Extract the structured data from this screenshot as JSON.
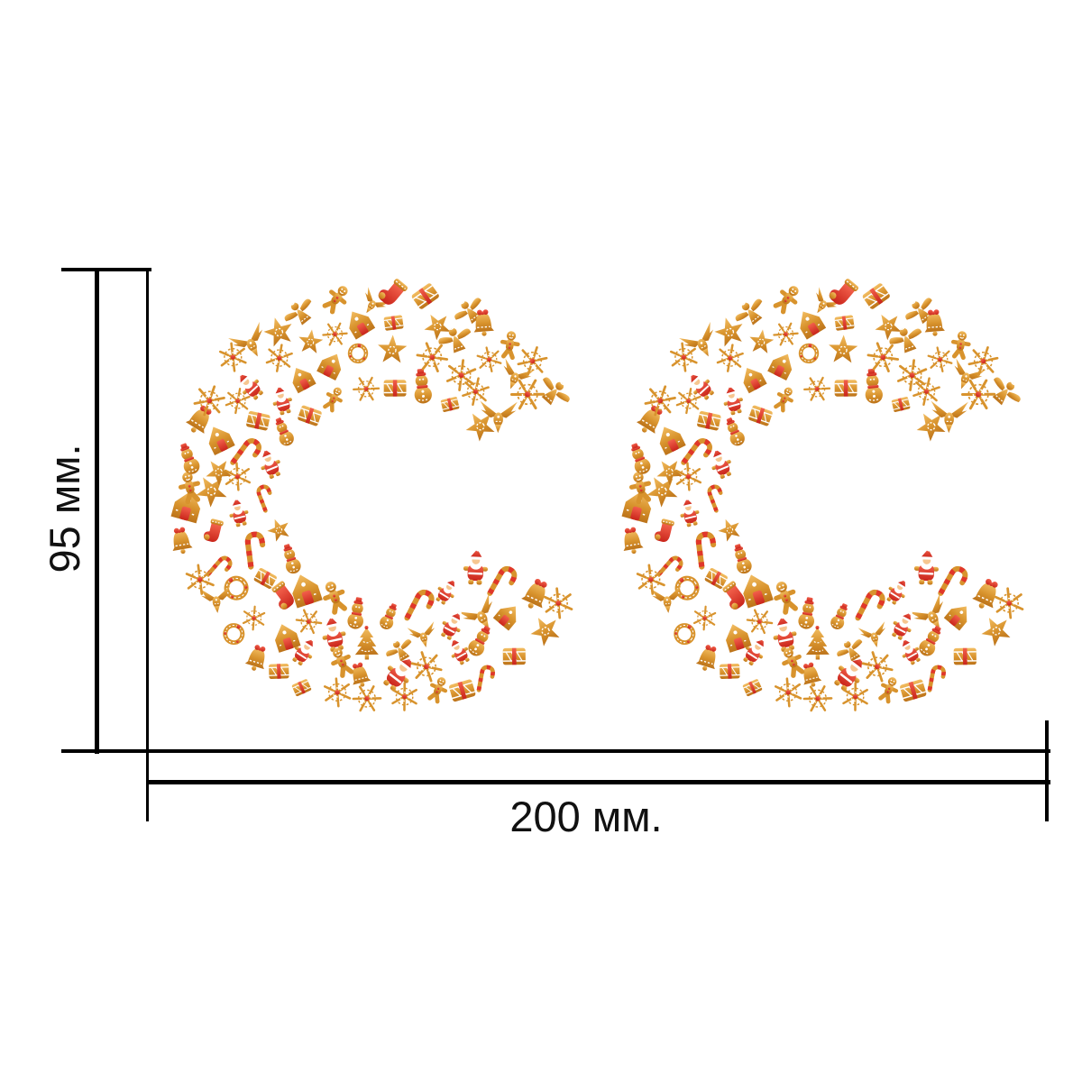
{
  "page": {
    "background": "#ffffff"
  },
  "diagram": {
    "height_dimension_label": "95 мм.",
    "width_dimension_label": "200 мм.",
    "line_color": "#000000",
    "text_color": "#111111"
  },
  "product": {
    "description": "letters-CC-christmas-gingerbread-mosaic",
    "letters": [
      {
        "glyph": "C"
      },
      {
        "glyph": "C"
      }
    ],
    "pattern_seed": 1987,
    "palette": {
      "gold_light": "#f2bd62",
      "gold": "#d8932d",
      "gold_dark": "#bc731a",
      "red_light": "#f2604b",
      "red": "#e0372a",
      "red_dark": "#c9251b",
      "skin": "#f6c690",
      "icing": "#ffffff"
    },
    "icons": [
      {
        "name": "gingerbread-house",
        "weight": 8
      },
      {
        "name": "snowflake",
        "weight": 15
      },
      {
        "name": "star",
        "weight": 7
      },
      {
        "name": "santa",
        "weight": 8
      },
      {
        "name": "bell",
        "weight": 7
      },
      {
        "name": "snowman",
        "weight": 7
      },
      {
        "name": "angel",
        "weight": 6
      },
      {
        "name": "dove",
        "weight": 10
      },
      {
        "name": "gift-box",
        "weight": 8
      },
      {
        "name": "candy-cane",
        "weight": 8
      },
      {
        "name": "gingerbread-man",
        "weight": 6
      },
      {
        "name": "wreath",
        "weight": 5
      },
      {
        "name": "christmas-tree",
        "weight": 3
      },
      {
        "name": "stocking",
        "weight": 2
      }
    ]
  }
}
